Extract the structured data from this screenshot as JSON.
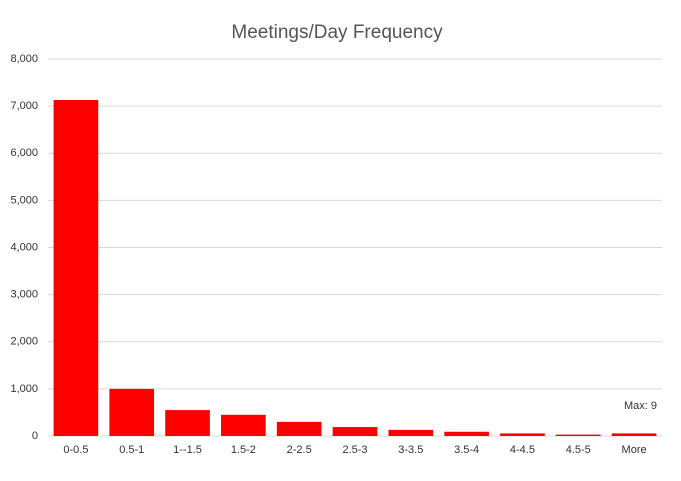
{
  "chart_data": {
    "type": "bar",
    "title": "Meetings/Day Frequency",
    "categories": [
      "0-0.5",
      "0.5-1",
      "1--1.5",
      "1.5-2",
      "2-2.5",
      "2.5-3",
      "3-3.5",
      "3.5-4",
      "4-4.5",
      "4.5-5",
      "More"
    ],
    "values": [
      7130,
      1000,
      550,
      450,
      300,
      190,
      130,
      90,
      55,
      30,
      55
    ],
    "color": "#ff0000",
    "ylim": [
      0,
      8000
    ],
    "yticks": [
      0,
      {
        "value": 1000,
        "label": "1,000"
      },
      {
        "value": 2000,
        "label": "2,000"
      },
      {
        "value": 3000,
        "label": "3,000"
      },
      {
        "value": 4000,
        "label": "4,000"
      },
      {
        "value": 5000,
        "label": "5,000"
      },
      {
        "value": 6000,
        "label": "6,000"
      },
      {
        "value": 7000,
        "label": "7,000"
      },
      {
        "value": 8000,
        "label": "8,000"
      }
    ],
    "grid": true,
    "annotation": "Max: 9"
  }
}
